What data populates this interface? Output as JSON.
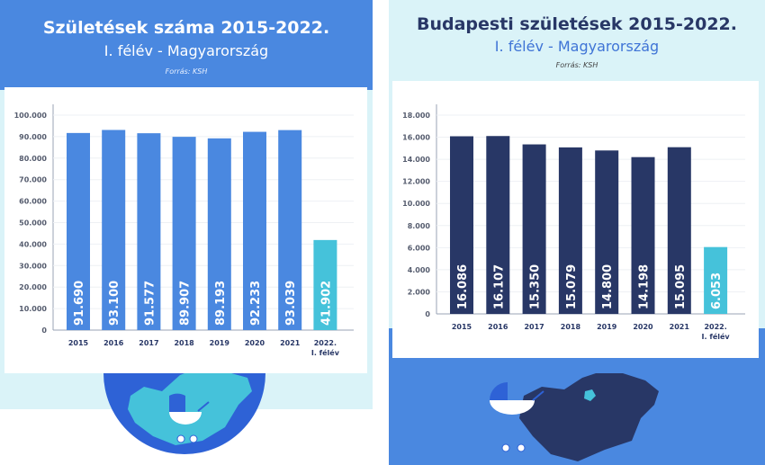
{
  "colors": {
    "blue_header": "#4a88e0",
    "light_cyan": "#daf3f8",
    "bar_blue": "#4a88e0",
    "bar_navy": "#283766",
    "bar_highlight": "#45c2da",
    "map_cyan": "#45c2da",
    "map_navy": "#283766",
    "circle_blue": "#2e62d6"
  },
  "left": {
    "title": "Születések száma 2015-2022.",
    "subtitle": "I. félév - Magyarország",
    "source": "Forrás: KSH"
  },
  "right": {
    "title": "Budapesti születések 2015-2022.",
    "subtitle": "I. félév - Magyarország",
    "source": "Forrás: KSH"
  },
  "chart_data": [
    {
      "type": "bar",
      "title": "Születések száma 2015-2022. I. félév - Magyarország",
      "categories": [
        "2015",
        "2016",
        "2017",
        "2018",
        "2019",
        "2020",
        "2021",
        "2022.\nI. félév"
      ],
      "values": [
        91690,
        93100,
        91577,
        89907,
        89193,
        92233,
        93039,
        41902
      ],
      "data_labels": [
        "91.690",
        "93.100",
        "91.577",
        "89.907",
        "89.193",
        "92.233",
        "93.039",
        "41.902"
      ],
      "yticks": [
        "0",
        "10.000",
        "20.000",
        "30.000",
        "40.000",
        "50.000",
        "60.000",
        "70.000",
        "80.000",
        "90.000",
        "100.000"
      ],
      "ylim": [
        0,
        100000
      ],
      "grid": true,
      "bar_colors": [
        "#4a88e0",
        "#4a88e0",
        "#4a88e0",
        "#4a88e0",
        "#4a88e0",
        "#4a88e0",
        "#4a88e0",
        "#45c2da"
      ]
    },
    {
      "type": "bar",
      "title": "Budapesti születések 2015-2022. I. félév - Magyarország",
      "categories": [
        "2015",
        "2016",
        "2017",
        "2018",
        "2019",
        "2020",
        "2021",
        "2022.\nI. félév"
      ],
      "values": [
        16086,
        16107,
        15350,
        15079,
        14800,
        14198,
        15095,
        6053
      ],
      "data_labels": [
        "16.086",
        "16.107",
        "15.350",
        "15.079",
        "14.800",
        "14.198",
        "15.095",
        "6.053"
      ],
      "yticks": [
        "0",
        "2.000",
        "4.000",
        "6.000",
        "8.000",
        "10.000",
        "12.000",
        "14.000",
        "16.000",
        "18.000"
      ],
      "ylim": [
        0,
        18000
      ],
      "grid": true,
      "bar_colors": [
        "#283766",
        "#283766",
        "#283766",
        "#283766",
        "#283766",
        "#283766",
        "#283766",
        "#45c2da"
      ]
    }
  ]
}
